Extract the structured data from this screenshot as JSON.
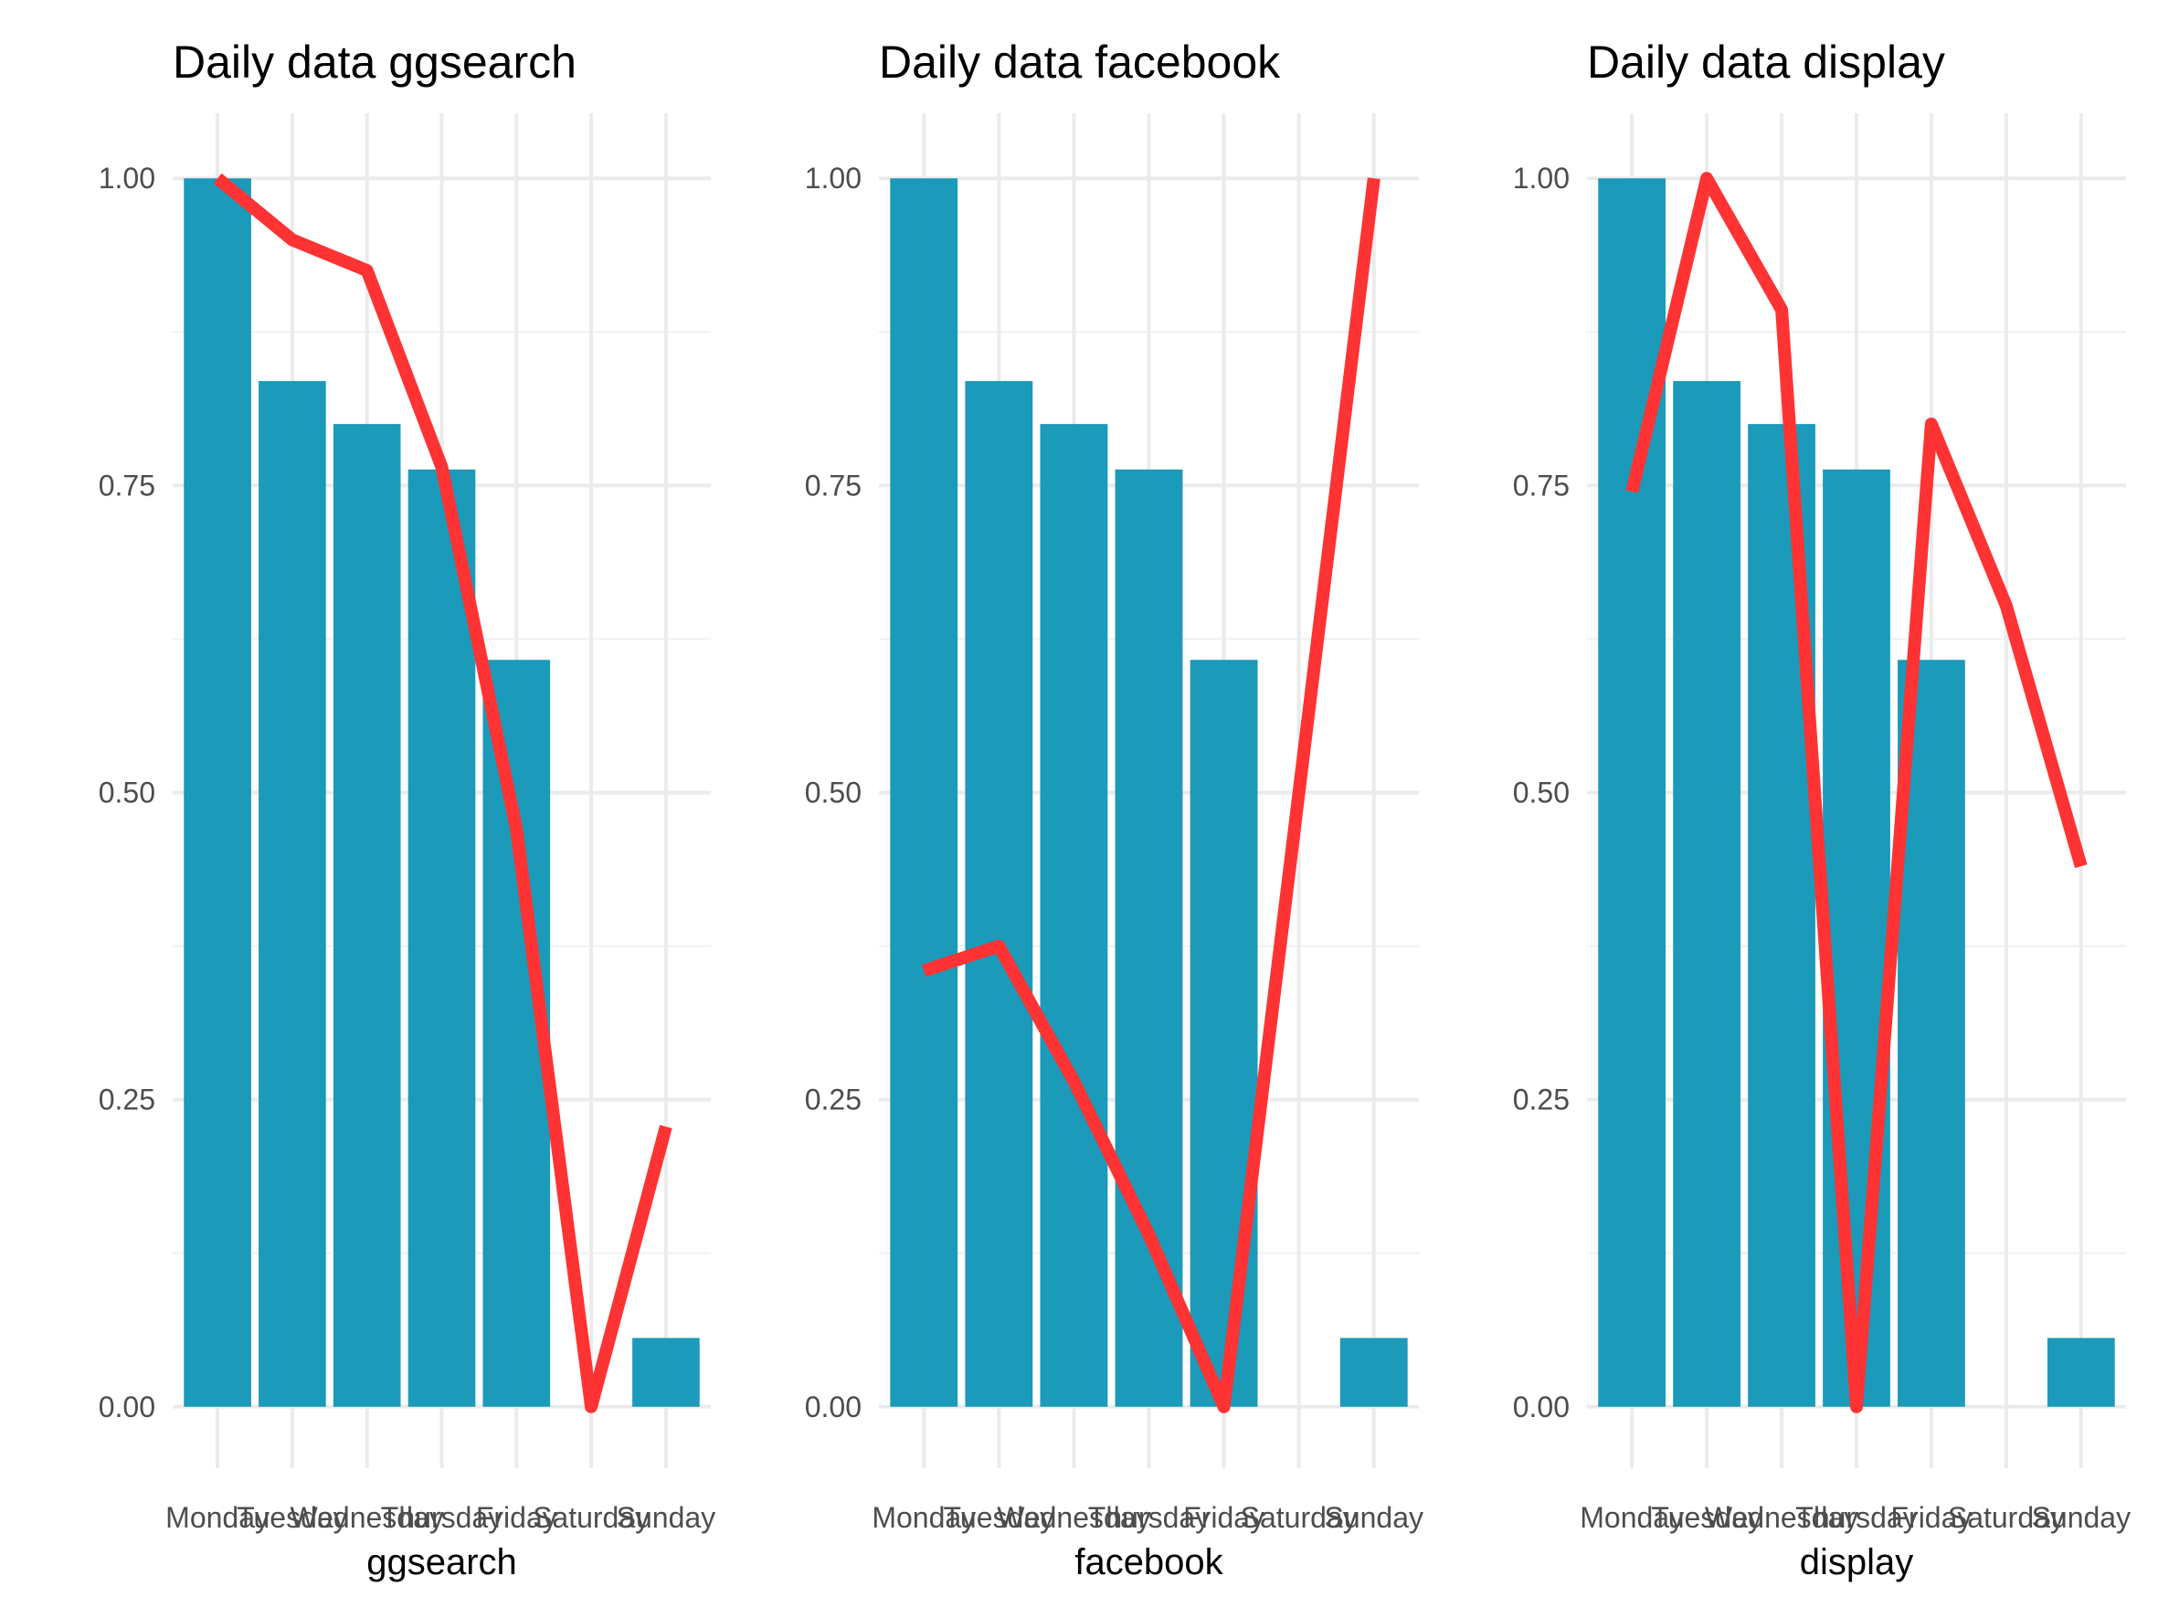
{
  "chart_data": [
    {
      "type": "bar",
      "title": "Daily data ggsearch",
      "xlabel": "ggsearch",
      "ylabel": "",
      "categories": [
        "Monday",
        "Tuesday",
        "Wednesday",
        "Thursday",
        "Friday",
        "Saturday",
        "Sunday"
      ],
      "y_ticks": [
        "0.00",
        "0.25",
        "0.50",
        "0.75",
        "1.00"
      ],
      "ylim": [
        -0.05,
        1.05
      ],
      "grid": true,
      "series": [
        {
          "kind": "bar",
          "color": "#1b9aba",
          "values": [
            1.0,
            0.835,
            0.8,
            0.763,
            0.608,
            0.0,
            0.056
          ]
        },
        {
          "kind": "line",
          "color": "#ff3333",
          "values": [
            1.0,
            0.95,
            0.925,
            0.765,
            0.47,
            0.0,
            0.228
          ]
        }
      ]
    },
    {
      "type": "bar",
      "title": "Daily data facebook",
      "xlabel": "facebook",
      "ylabel": "",
      "categories": [
        "Monday",
        "Tuesday",
        "Wednesday",
        "Thursday",
        "Friday",
        "Saturday",
        "Sunday"
      ],
      "y_ticks": [
        "0.00",
        "0.25",
        "0.50",
        "0.75",
        "1.00"
      ],
      "ylim": [
        -0.05,
        1.05
      ],
      "grid": true,
      "series": [
        {
          "kind": "bar",
          "color": "#1b9aba",
          "values": [
            1.0,
            0.835,
            0.8,
            0.763,
            0.608,
            0.0,
            0.056
          ]
        },
        {
          "kind": "line",
          "color": "#ff3333",
          "values": [
            0.355,
            0.375,
            0.265,
            0.14,
            0.0,
            0.5,
            1.0
          ]
        }
      ]
    },
    {
      "type": "bar",
      "title": "Daily data display",
      "xlabel": "display",
      "ylabel": "",
      "categories": [
        "Monday",
        "Tuesday",
        "Wednesday",
        "Thursday",
        "Friday",
        "Saturday",
        "Sunday"
      ],
      "y_ticks": [
        "0.00",
        "0.25",
        "0.50",
        "0.75",
        "1.00"
      ],
      "ylim": [
        -0.05,
        1.05
      ],
      "grid": true,
      "series": [
        {
          "kind": "bar",
          "color": "#1b9aba",
          "values": [
            1.0,
            0.835,
            0.8,
            0.763,
            0.608,
            0.0,
            0.056
          ]
        },
        {
          "kind": "line",
          "color": "#ff3333",
          "values": [
            0.745,
            1.0,
            0.893,
            0.0,
            0.8,
            0.652,
            0.44
          ]
        }
      ]
    }
  ]
}
